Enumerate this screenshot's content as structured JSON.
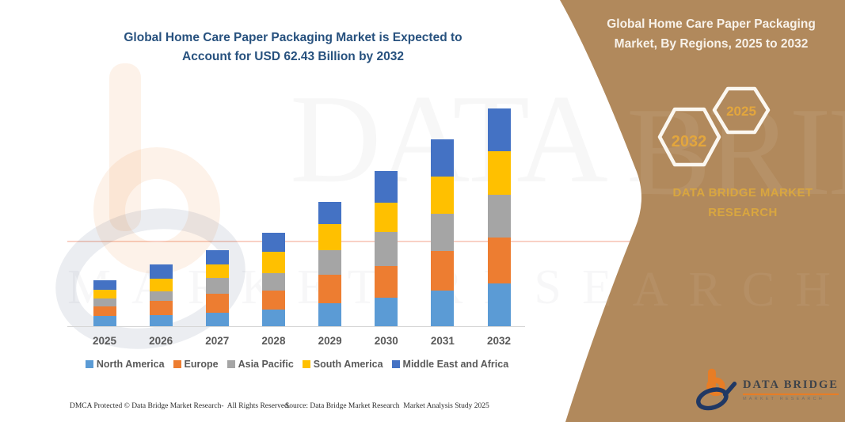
{
  "page": {
    "background": "#FFFFFF",
    "panel_brown": "#B1895C",
    "gold": "#D9A63F"
  },
  "left": {
    "title": "Global Home Care Paper Packaging Market is Expected to\nAccount for USD 62.43 Billion by 2032",
    "title_color": "#27517E",
    "footer_left": "DMCA Protected © Data Bridge Market Research-  All Rights Reserved.",
    "footer_right": "Source: Data Bridge Market Research  Market Analysis Study 2025"
  },
  "chart_data": {
    "type": "bar",
    "stacked": true,
    "title": "Global Home Care Paper Packaging Market is Expected to Account for USD 62.43 Billion by 2032",
    "unit": "USD Billion",
    "categories": [
      "2025",
      "2026",
      "2027",
      "2028",
      "2029",
      "2030",
      "2031",
      "2032"
    ],
    "series": [
      {
        "name": "North America",
        "color": "#5B9BD5",
        "values": [
          3.2,
          3.5,
          4.1,
          5.0,
          6.8,
          8.4,
          10.5,
          12.4
        ]
      },
      {
        "name": "Europe",
        "color": "#ED7D31",
        "values": [
          2.6,
          4.0,
          5.5,
          5.4,
          8.2,
          9.1,
          11.2,
          13.2
        ]
      },
      {
        "name": "Asia Pacific",
        "color": "#A5A5A5",
        "values": [
          2.3,
          2.6,
          4.4,
          5.0,
          6.9,
          9.7,
          10.6,
          12.2
        ]
      },
      {
        "name": "South America",
        "color": "#FFC000",
        "values": [
          2.6,
          3.8,
          3.9,
          6.1,
          7.6,
          8.4,
          10.7,
          12.5
        ]
      },
      {
        "name": "Middle East and Africa",
        "color": "#4472C4",
        "values": [
          2.7,
          3.9,
          4.1,
          5.4,
          6.3,
          9.0,
          10.7,
          12.13
        ]
      }
    ],
    "totals_estimated": [
      13.4,
      17.8,
      22.0,
      26.9,
      35.8,
      44.6,
      53.7,
      62.43
    ],
    "stated_final_value": "USD 62.43 Billion by 2032",
    "y_axis_visible": false,
    "gridlines": false,
    "legend_position": "bottom",
    "note": "segment values estimated from bar pixel heights; only the 2032 total (62.43) is stated on the image"
  },
  "right_panel": {
    "title": "Global Home Care Paper Packaging\nMarket, By Regions, 2025 to 2032",
    "hexagon_back_label": "2032",
    "hexagon_front_label": "2025",
    "brand_text": "DATA BRIDGE MARKET\nRESEARCH"
  },
  "logo": {
    "name_text": "DATA BRIDGE",
    "tagline": "MARKET RESEARCH"
  },
  "watermark": {
    "line1": "DATA BRIDGE",
    "line2": "MARKET RESEARCH"
  }
}
